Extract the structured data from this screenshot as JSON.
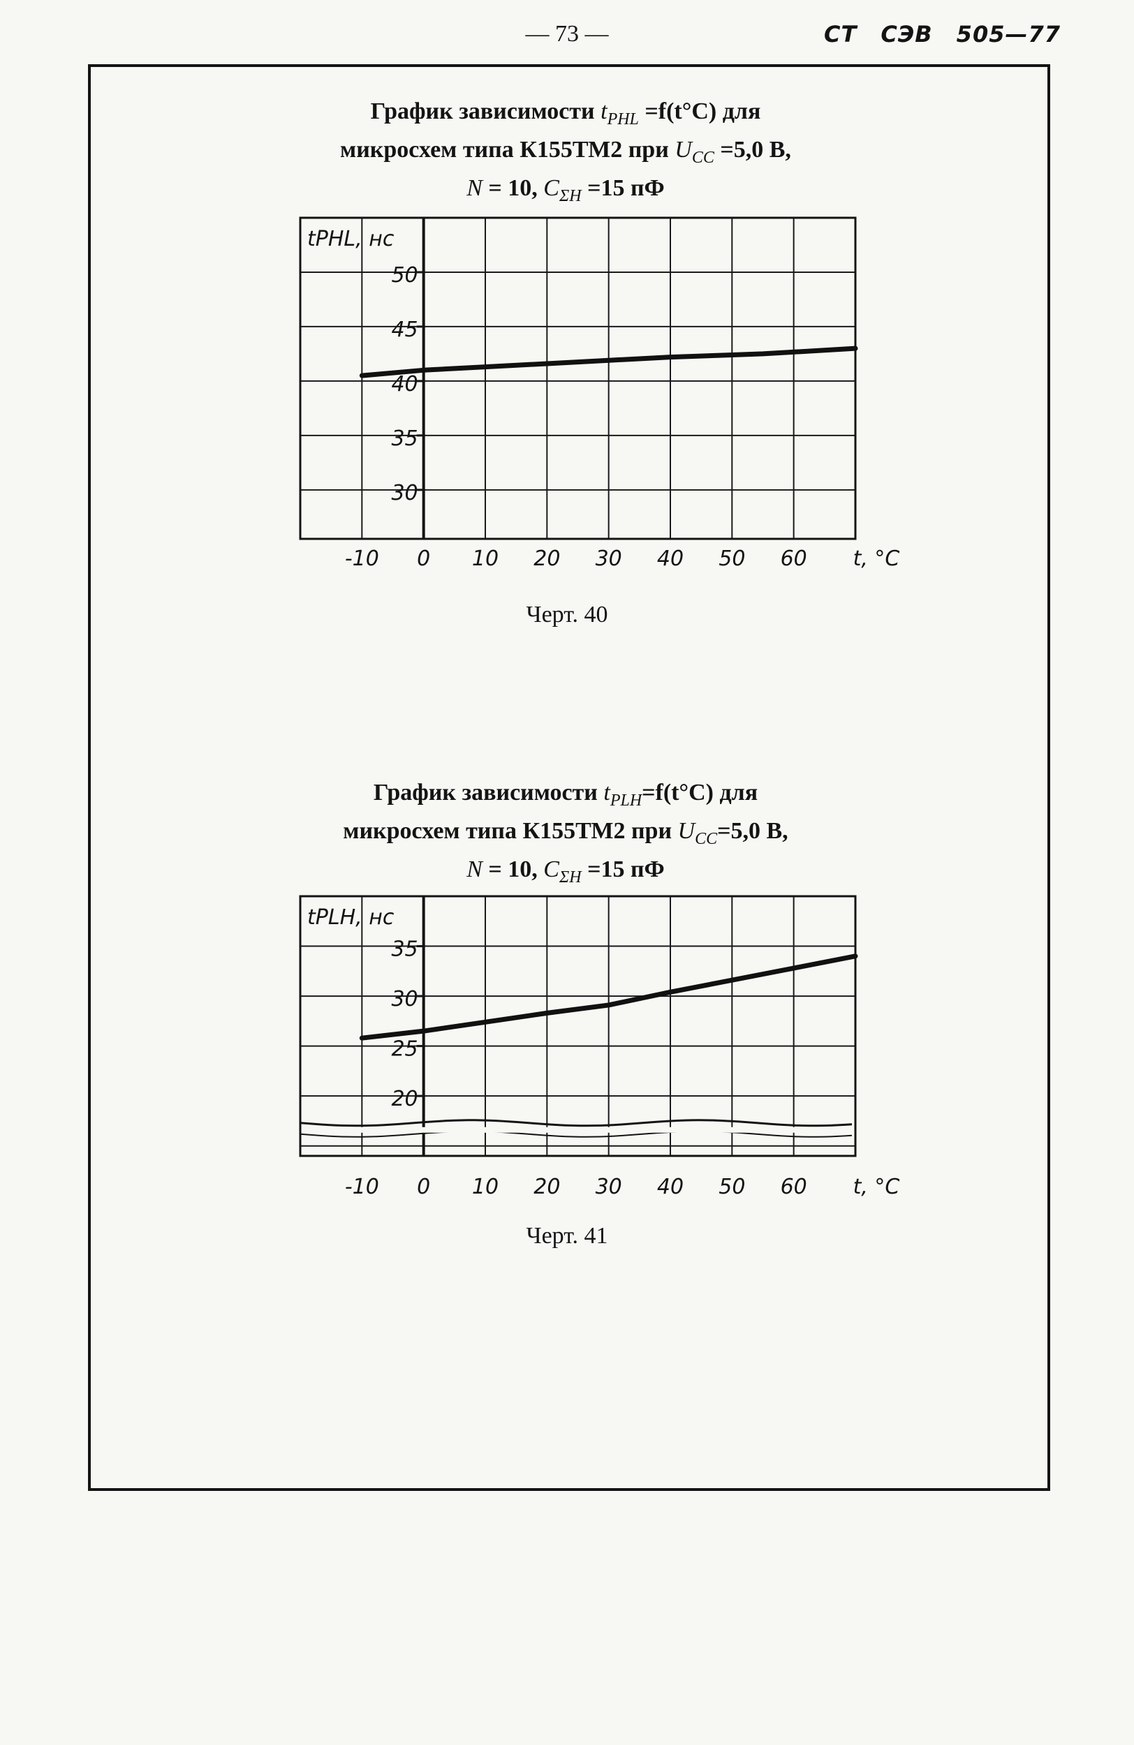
{
  "header": {
    "page_number": "— 73 —",
    "standard": [
      "СТ",
      "СЭВ",
      "505—77"
    ]
  },
  "figures": [
    {
      "title_lines": [
        [
          "График зависимости ",
          "t",
          "PHL",
          " =f(t°C) для"
        ],
        [
          "микросхем типа К155ТМ2 при ",
          "U",
          "CC",
          " =5,0 В,"
        ],
        [
          "",
          "N",
          "",
          " = 10, "
        ],
        [
          "",
          "C",
          "ΣH",
          " =15 пФ"
        ]
      ],
      "caption": "Черт. 40"
    },
    {
      "title_lines": [
        [
          "График зависимости ",
          "t",
          "PLH",
          "=f(t°C) для"
        ],
        [
          "микросхем типа К155ТМ2 при ",
          "U",
          "CC",
          "=5,0 В,"
        ],
        [
          "",
          "N",
          "",
          " = 10, "
        ],
        [
          "",
          "C",
          "ΣH",
          " =15 пФ"
        ]
      ],
      "caption": "Черт. 41"
    }
  ],
  "chart_data": [
    {
      "type": "line",
      "ylabel": "tPHL, нс",
      "xlabel": "t, °C",
      "x_ticks": [
        "-10",
        "0",
        "10",
        "20",
        "30",
        "40",
        "50",
        "60"
      ],
      "y_ticks": [
        "50",
        "45",
        "40",
        "35",
        "30"
      ],
      "xlim": [
        -20,
        70
      ],
      "ylim": [
        25.5,
        55
      ],
      "grid": true,
      "axis_break": false,
      "series": [
        {
          "x": [
            -10,
            0,
            10,
            20,
            30,
            40,
            50,
            55,
            70
          ],
          "y": [
            40.5,
            41.0,
            41.3,
            41.6,
            41.9,
            42.2,
            42.4,
            42.5,
            43.0
          ]
        }
      ]
    },
    {
      "type": "line",
      "ylabel": "tPLH, нс",
      "xlabel": "t, °C",
      "x_ticks": [
        "-10",
        "0",
        "10",
        "20",
        "30",
        "40",
        "50",
        "60"
      ],
      "y_ticks": [
        "35",
        "30",
        "25",
        "20"
      ],
      "xlim": [
        -20,
        70
      ],
      "ylim": [
        14,
        40
      ],
      "grid": true,
      "axis_break": true,
      "series": [
        {
          "x": [
            -10,
            0,
            10,
            20,
            30,
            40,
            50,
            60,
            70
          ],
          "y": [
            25.8,
            26.5,
            27.4,
            28.3,
            29.1,
            30.4,
            31.6,
            32.8,
            34.0
          ]
        }
      ]
    }
  ]
}
